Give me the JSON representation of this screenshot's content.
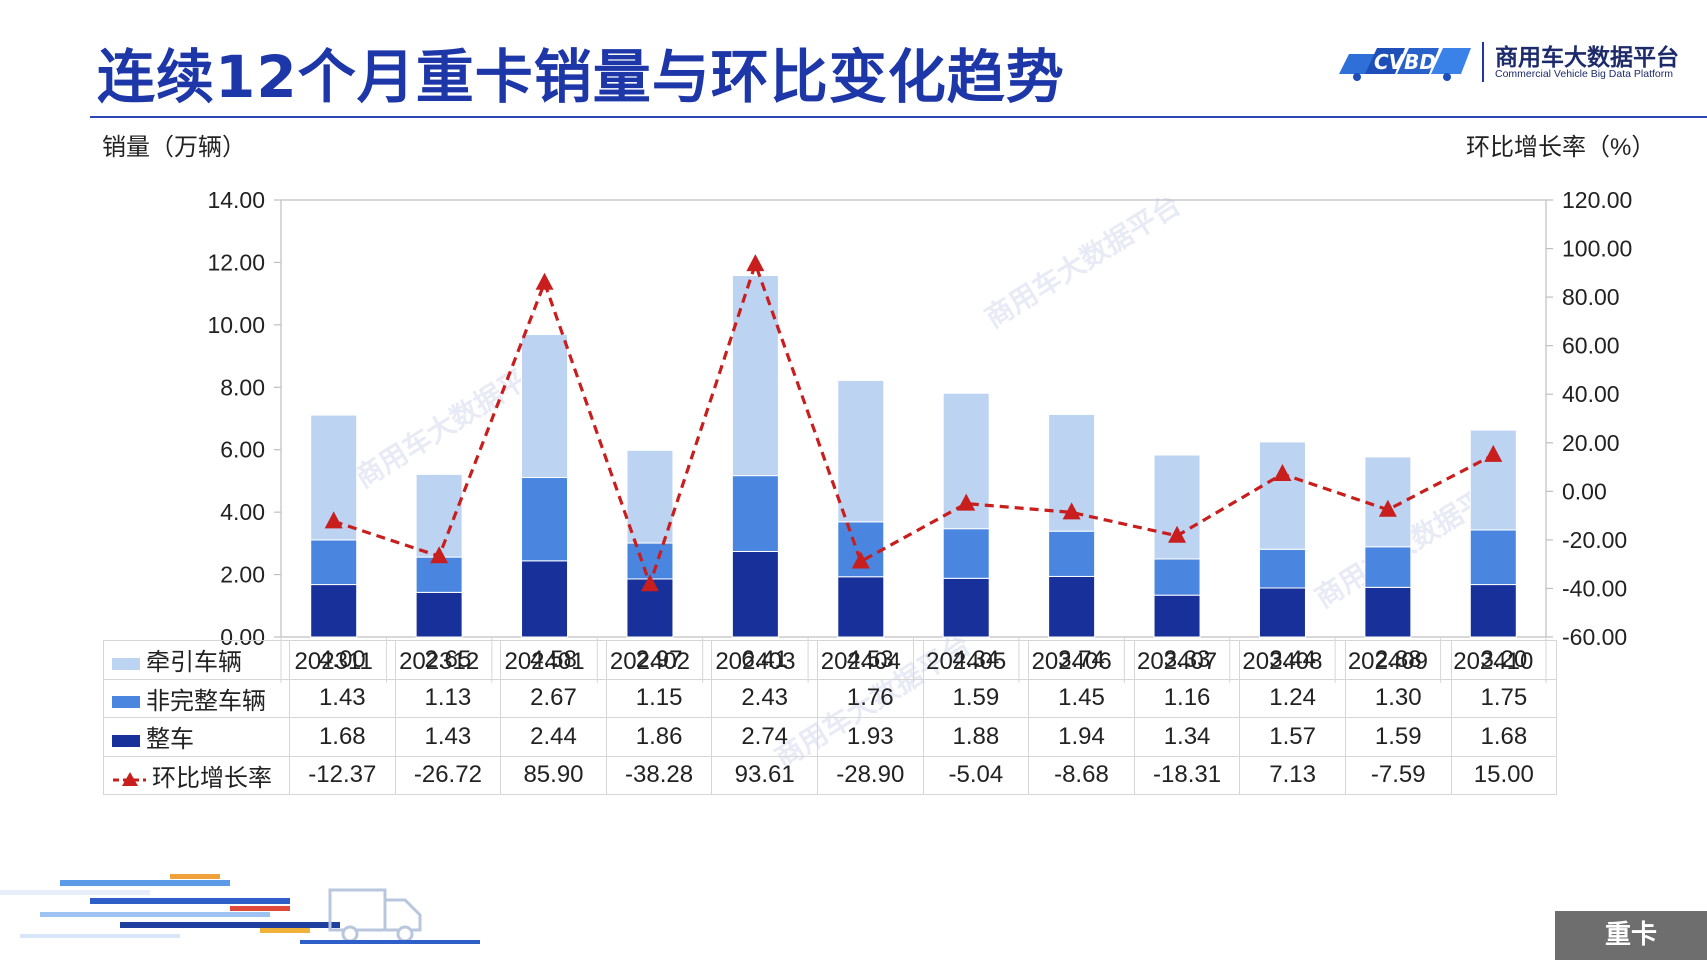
{
  "header": {
    "title": "连续12个月重卡销量与环比变化趋势",
    "brand_logo_text": "CVBD",
    "brand_name": "商用车大数据平台",
    "brand_subtitle": "Commercial Vehicle Big Data Platform"
  },
  "watermark": "商用车大数据平台",
  "corner_tag": "重卡",
  "colors": {
    "title": "#1d36a8",
    "tractor": "#bdd3f2",
    "non_complete": "#4a86e0",
    "complete": "#17309a",
    "growth": "#c81e1e",
    "corner_tag": "#6e6e6e"
  },
  "chart_data": {
    "type": "bar",
    "stacked": true,
    "categories": [
      "202311",
      "202312",
      "202401",
      "202402",
      "202403",
      "202404",
      "202405",
      "202406",
      "202407",
      "202408",
      "202409",
      "202410"
    ],
    "series": [
      {
        "name": "整车",
        "type": "bar",
        "axis": "left",
        "values": [
          1.68,
          1.43,
          2.44,
          1.86,
          2.74,
          1.93,
          1.88,
          1.94,
          1.34,
          1.57,
          1.59,
          1.68
        ]
      },
      {
        "name": "非完整车辆",
        "type": "bar",
        "axis": "left",
        "values": [
          1.43,
          1.13,
          2.67,
          1.15,
          2.43,
          1.76,
          1.59,
          1.45,
          1.16,
          1.24,
          1.3,
          1.75
        ]
      },
      {
        "name": "牵引车辆",
        "type": "bar",
        "axis": "left",
        "values": [
          4.0,
          2.65,
          4.58,
          2.97,
          6.41,
          4.53,
          4.34,
          3.74,
          3.33,
          3.44,
          2.88,
          3.2
        ]
      },
      {
        "name": "环比增长率",
        "type": "line",
        "axis": "right",
        "style": "dashed-with-triangle-markers",
        "values": [
          -12.37,
          -26.72,
          85.9,
          -38.28,
          93.61,
          -28.9,
          -5.04,
          -8.68,
          -18.31,
          7.13,
          -7.59,
          15.0
        ]
      }
    ],
    "ylabel": "销量（万辆）",
    "ylabel_right": "环比增长率（%）",
    "ylim": [
      0,
      14
    ],
    "yticks": [
      0,
      2,
      4,
      6,
      8,
      10,
      12,
      14
    ],
    "ytick_labels": [
      "0.00",
      "2.00",
      "4.00",
      "6.00",
      "8.00",
      "10.00",
      "12.00",
      "14.00"
    ],
    "ylim_right": [
      -60,
      120
    ],
    "yticks_right": [
      -60,
      -40,
      -20,
      0,
      20,
      40,
      60,
      80,
      100,
      120
    ],
    "ytick_labels_right": [
      "-60.00",
      "-40.00",
      "-20.00",
      "0.00",
      "20.00",
      "40.00",
      "60.00",
      "80.00",
      "100.00",
      "120.00"
    ],
    "grid": false,
    "legend": "data-table-below",
    "table_rows": [
      {
        "label": "牵引车辆",
        "series": "牵引车辆",
        "values": [
          "4.00",
          "2.65",
          "4.58",
          "2.97",
          "6.41",
          "4.53",
          "4.34",
          "3.74",
          "3.33",
          "3.44",
          "2.88",
          "3.20"
        ]
      },
      {
        "label": "非完整车辆",
        "series": "非完整车辆",
        "values": [
          "1.43",
          "1.13",
          "2.67",
          "1.15",
          "2.43",
          "1.76",
          "1.59",
          "1.45",
          "1.16",
          "1.24",
          "1.30",
          "1.75"
        ]
      },
      {
        "label": "整车",
        "series": "整车",
        "values": [
          "1.68",
          "1.43",
          "2.44",
          "1.86",
          "2.74",
          "1.93",
          "1.88",
          "1.94",
          "1.34",
          "1.57",
          "1.59",
          "1.68"
        ]
      },
      {
        "label": "环比增长率",
        "series": "环比增长率",
        "values": [
          "-12.37",
          "-26.72",
          "85.90",
          "-38.28",
          "93.61",
          "-28.90",
          "-5.04",
          "-8.68",
          "-18.31",
          "7.13",
          "-7.59",
          "15.00"
        ]
      }
    ]
  }
}
